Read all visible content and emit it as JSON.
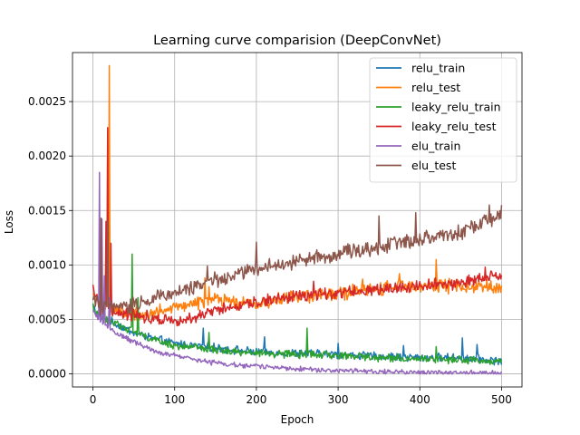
{
  "chart_data": {
    "type": "line",
    "title": "Learning curve comparision (DeepConvNet)",
    "xlabel": "Epoch",
    "ylabel": "Loss",
    "xlim": [
      -25,
      525
    ],
    "ylim": [
      -0.00012,
      0.00295
    ],
    "xticks": [
      0,
      100,
      200,
      300,
      400,
      500
    ],
    "xtick_labels": [
      "0",
      "100",
      "200",
      "300",
      "400",
      "500"
    ],
    "yticks": [
      0.0,
      0.0005,
      0.001,
      0.0015,
      0.002,
      0.0025
    ],
    "ytick_labels": [
      "0.0000",
      "0.0005",
      "0.0010",
      "0.0015",
      "0.0020",
      "0.0025"
    ],
    "grid": true,
    "legend_position": "top-right",
    "x": {
      "start": 0,
      "end": 500,
      "step": 1
    },
    "series": [
      {
        "name": "relu_train",
        "color": "#1f77b4",
        "anchors": [
          [
            0,
            0.00063
          ],
          [
            5,
            0.00055
          ],
          [
            10,
            0.00052
          ],
          [
            20,
            0.00049
          ],
          [
            30,
            0.00045
          ],
          [
            50,
            0.00038
          ],
          [
            75,
            0.00032
          ],
          [
            100,
            0.00028
          ],
          [
            150,
            0.00024
          ],
          [
            200,
            0.0002
          ],
          [
            250,
            0.00019
          ],
          [
            300,
            0.00018
          ],
          [
            350,
            0.00016
          ],
          [
            400,
            0.00015
          ],
          [
            450,
            0.00015
          ],
          [
            500,
            0.00012
          ]
        ],
        "noise": 3e-05,
        "spikes": [
          [
            135,
            0.00042
          ],
          [
            210,
            0.00034
          ],
          [
            300,
            0.00028
          ],
          [
            380,
            0.00026
          ],
          [
            452,
            0.00033
          ],
          [
            470,
            0.00027
          ]
        ]
      },
      {
        "name": "relu_test",
        "color": "#ff7f0e",
        "anchors": [
          [
            0,
            0.0007
          ],
          [
            5,
            0.00066
          ],
          [
            10,
            0.00064
          ],
          [
            15,
            0.00066
          ],
          [
            25,
            0.0006
          ],
          [
            40,
            0.00057
          ],
          [
            60,
            0.00054
          ],
          [
            80,
            0.00057
          ],
          [
            100,
            0.0006
          ],
          [
            120,
            0.00065
          ],
          [
            150,
            0.00068
          ],
          [
            200,
            0.00064
          ],
          [
            250,
            0.00071
          ],
          [
            300,
            0.00074
          ],
          [
            350,
            0.00078
          ],
          [
            400,
            0.00082
          ],
          [
            450,
            0.0008
          ],
          [
            500,
            0.0008
          ]
        ],
        "noise": 5e-05,
        "spikes": [
          [
            20,
            0.00283
          ],
          [
            18,
            0.0021
          ],
          [
            137,
            0.00088
          ],
          [
            142,
            0.0008
          ],
          [
            330,
            0.00087
          ],
          [
            375,
            0.00092
          ],
          [
            420,
            0.00105
          ]
        ]
      },
      {
        "name": "leaky_relu_train",
        "color": "#2ca02c",
        "anchors": [
          [
            0,
            0.00062
          ],
          [
            5,
            0.00055
          ],
          [
            10,
            0.00052
          ],
          [
            20,
            0.00048
          ],
          [
            30,
            0.00046
          ],
          [
            50,
            0.00039
          ],
          [
            75,
            0.00031
          ],
          [
            100,
            0.00026
          ],
          [
            150,
            0.00022
          ],
          [
            200,
            0.00019
          ],
          [
            250,
            0.00018
          ],
          [
            300,
            0.00017
          ],
          [
            350,
            0.00015
          ],
          [
            400,
            0.00014
          ],
          [
            450,
            0.00013
          ],
          [
            500,
            0.00011
          ]
        ],
        "noise": 2.8e-05,
        "spikes": [
          [
            48,
            0.0011
          ],
          [
            55,
            0.0007
          ],
          [
            142,
            0.00038
          ],
          [
            262,
            0.00042
          ],
          [
            420,
            0.00025
          ]
        ]
      },
      {
        "name": "leaky_relu_test",
        "color": "#d62728",
        "anchors": [
          [
            0,
            0.0008
          ],
          [
            5,
            0.00068
          ],
          [
            10,
            0.00063
          ],
          [
            25,
            0.00058
          ],
          [
            40,
            0.00055
          ],
          [
            60,
            0.00053
          ],
          [
            80,
            0.00051
          ],
          [
            100,
            0.0005
          ],
          [
            125,
            0.00052
          ],
          [
            150,
            0.00058
          ],
          [
            200,
            0.00066
          ],
          [
            250,
            0.00072
          ],
          [
            300,
            0.00074
          ],
          [
            350,
            0.00078
          ],
          [
            400,
            0.00081
          ],
          [
            450,
            0.00084
          ],
          [
            500,
            0.0009
          ]
        ],
        "noise": 4.5e-05,
        "spikes": [
          [
            18,
            0.00226
          ],
          [
            16,
            0.0014
          ],
          [
            22,
            0.0012
          ],
          [
            270,
            0.00085
          ],
          [
            480,
            0.00098
          ]
        ]
      },
      {
        "name": "elu_train",
        "color": "#9467bd",
        "anchors": [
          [
            0,
            0.00057
          ],
          [
            8,
            0.0005
          ],
          [
            15,
            0.00045
          ],
          [
            25,
            0.00039
          ],
          [
            40,
            0.00033
          ],
          [
            60,
            0.00026
          ],
          [
            80,
            0.0002
          ],
          [
            100,
            0.00017
          ],
          [
            125,
            0.00013
          ],
          [
            150,
            0.0001
          ],
          [
            175,
            8e-05
          ],
          [
            200,
            7e-05
          ],
          [
            250,
            5e-05
          ],
          [
            300,
            3e-05
          ],
          [
            350,
            2e-05
          ],
          [
            400,
            1e-05
          ],
          [
            450,
            1e-05
          ],
          [
            500,
            5e-06
          ]
        ],
        "noise": 1.8e-05,
        "spikes": [
          [
            8,
            0.00185
          ],
          [
            11,
            0.00142
          ],
          [
            14,
            0.0009
          ],
          [
            20,
            0.0007
          ]
        ]
      },
      {
        "name": "elu_test",
        "color": "#8c564b",
        "anchors": [
          [
            0,
            0.00072
          ],
          [
            5,
            0.00064
          ],
          [
            10,
            0.00058
          ],
          [
            15,
            0.00062
          ],
          [
            25,
            0.0006
          ],
          [
            40,
            0.00062
          ],
          [
            60,
            0.00066
          ],
          [
            80,
            0.00071
          ],
          [
            100,
            0.00075
          ],
          [
            125,
            0.0008
          ],
          [
            150,
            0.00086
          ],
          [
            175,
            0.00091
          ],
          [
            200,
            0.00097
          ],
          [
            250,
            0.00103
          ],
          [
            300,
            0.0011
          ],
          [
            350,
            0.00117
          ],
          [
            400,
            0.00124
          ],
          [
            450,
            0.0013
          ],
          [
            500,
            0.00146
          ]
        ],
        "noise": 5.5e-05,
        "spikes": [
          [
            10,
            0.00143
          ],
          [
            18,
            0.0014
          ],
          [
            140,
            0.00099
          ],
          [
            200,
            0.00121
          ],
          [
            350,
            0.00145
          ],
          [
            395,
            0.00148
          ],
          [
            485,
            0.00155
          ],
          [
            500,
            0.00155
          ]
        ]
      }
    ]
  }
}
